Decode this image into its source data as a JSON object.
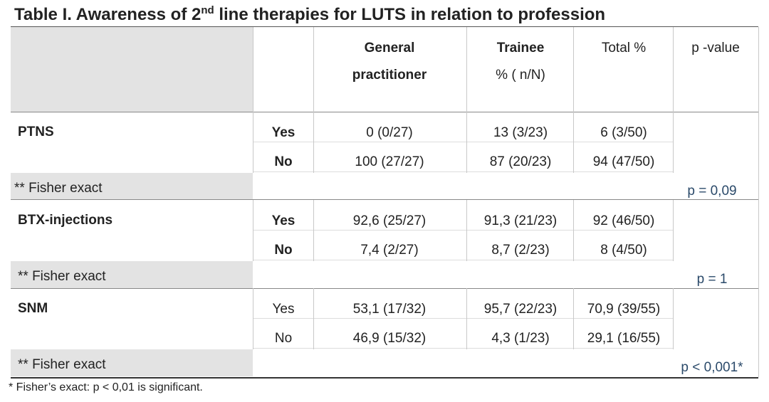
{
  "title": {
    "prefix": "Table I. Awareness of 2",
    "sup": "nd",
    "suffix": " line therapies for LUTS in relation to profession"
  },
  "table": {
    "columns": [
      [
        "General",
        "practitioner"
      ],
      [
        "Trainee",
        "% ( n/N)"
      ],
      [
        "Total %"
      ],
      [
        "p -value"
      ]
    ],
    "groups": [
      {
        "label": "PTNS",
        "rows": [
          {
            "answer": "Yes",
            "cells": [
              "0 (0/27)",
              "13 (3/23)",
              "6 (3/50)"
            ]
          },
          {
            "answer": "No",
            "cells": [
              "100 (27/27)",
              "87 (20/23)",
              "94 (47/50)"
            ]
          }
        ],
        "test": "** Fisher exact",
        "p": "p = 0,09"
      },
      {
        "label": "BTX-injections",
        "rows": [
          {
            "answer": "Yes",
            "cells": [
              "92,6 (25/27)",
              "91,3 (21/23)",
              "92 (46/50)"
            ]
          },
          {
            "answer": "No",
            "cells": [
              "7,4 (2/27)",
              "8,7 (2/23)",
              "8 (4/50)"
            ]
          }
        ],
        "test": "** Fisher exact",
        "p": "p = 1"
      },
      {
        "label": "SNM",
        "rows": [
          {
            "answer": "Yes",
            "cells": [
              "53,1 (17/32)",
              "95,7 (22/23)",
              "70,9 (39/55)"
            ]
          },
          {
            "answer": "No",
            "cells": [
              "46,9 (15/32)",
              "4,3 (1/23)",
              "29,1 (16/55)"
            ]
          }
        ],
        "test": "** Fisher exact",
        "p": "p < 0,001*"
      }
    ]
  },
  "footnote": "* Fisher’s exact: p < 0,01 is significant."
}
